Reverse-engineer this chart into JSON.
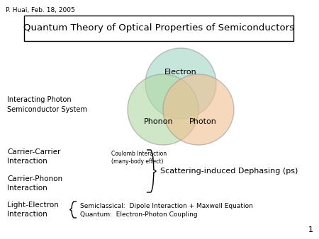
{
  "title": "Quantum Theory of Optical Properties of Semiconductors",
  "header": "P. Huai, Feb. 18, 2005",
  "page_number": "1",
  "venn_labels": [
    "Electron",
    "Phonon",
    "Photon"
  ],
  "venn_colors": [
    "#a0d4c4",
    "#b0d8a0",
    "#f0c090"
  ],
  "venn_alpha": 0.6,
  "label_interacting": "Interacting Photon\nSemiconductor System",
  "label_carrier_carrier": "Carrier-Carrier\nInteraction",
  "label_carrier_phonon": "Carrier-Phonon\nInteraction",
  "label_light_electron": "Light-Electron\nInteraction",
  "coulomb_text": "Coulomb Interaction\n(many-body effect)",
  "scattering_text": "Scattering-induced Dephasing (ps)",
  "semiclassical_text": "Semiclassical:  Dipole Interaction + Maxwell Equation",
  "quantum_text": "Quantum:  Electron-Photon Coupling",
  "background": "#ffffff"
}
